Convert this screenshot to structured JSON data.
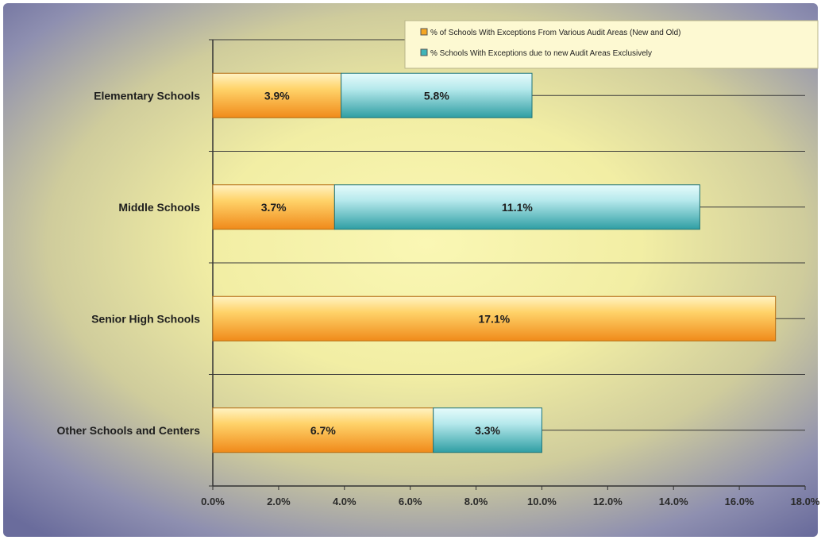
{
  "chart_data": {
    "type": "bar",
    "orientation": "horizontal",
    "stacked": true,
    "categories": [
      "Elementary Schools",
      "Middle Schools",
      "Senior High Schools",
      "Other Schools and Centers"
    ],
    "series": [
      {
        "name": "% of Schools With Exceptions From Various Audit Areas (New and Old)",
        "values": [
          3.9,
          3.7,
          17.1,
          6.7
        ],
        "labels": [
          "3.9%",
          "3.7%",
          "17.1%",
          "6.7%"
        ],
        "color": "#f5a623"
      },
      {
        "name": "% Schools With Exceptions due to new Audit Areas Exclusively",
        "values": [
          5.8,
          11.1,
          0,
          3.3
        ],
        "labels": [
          "5.8%",
          "11.1%",
          "",
          "3.3%"
        ],
        "color": "#3fb4b8"
      }
    ],
    "xlim": [
      0,
      18
    ],
    "x_ticks": [
      "0.0%",
      "2.0%",
      "4.0%",
      "6.0%",
      "8.0%",
      "10.0%",
      "12.0%",
      "14.0%",
      "16.0%",
      "18.0%"
    ],
    "grid": true,
    "legend_position": "top-right",
    "title": "",
    "xlabel": "",
    "ylabel": ""
  }
}
